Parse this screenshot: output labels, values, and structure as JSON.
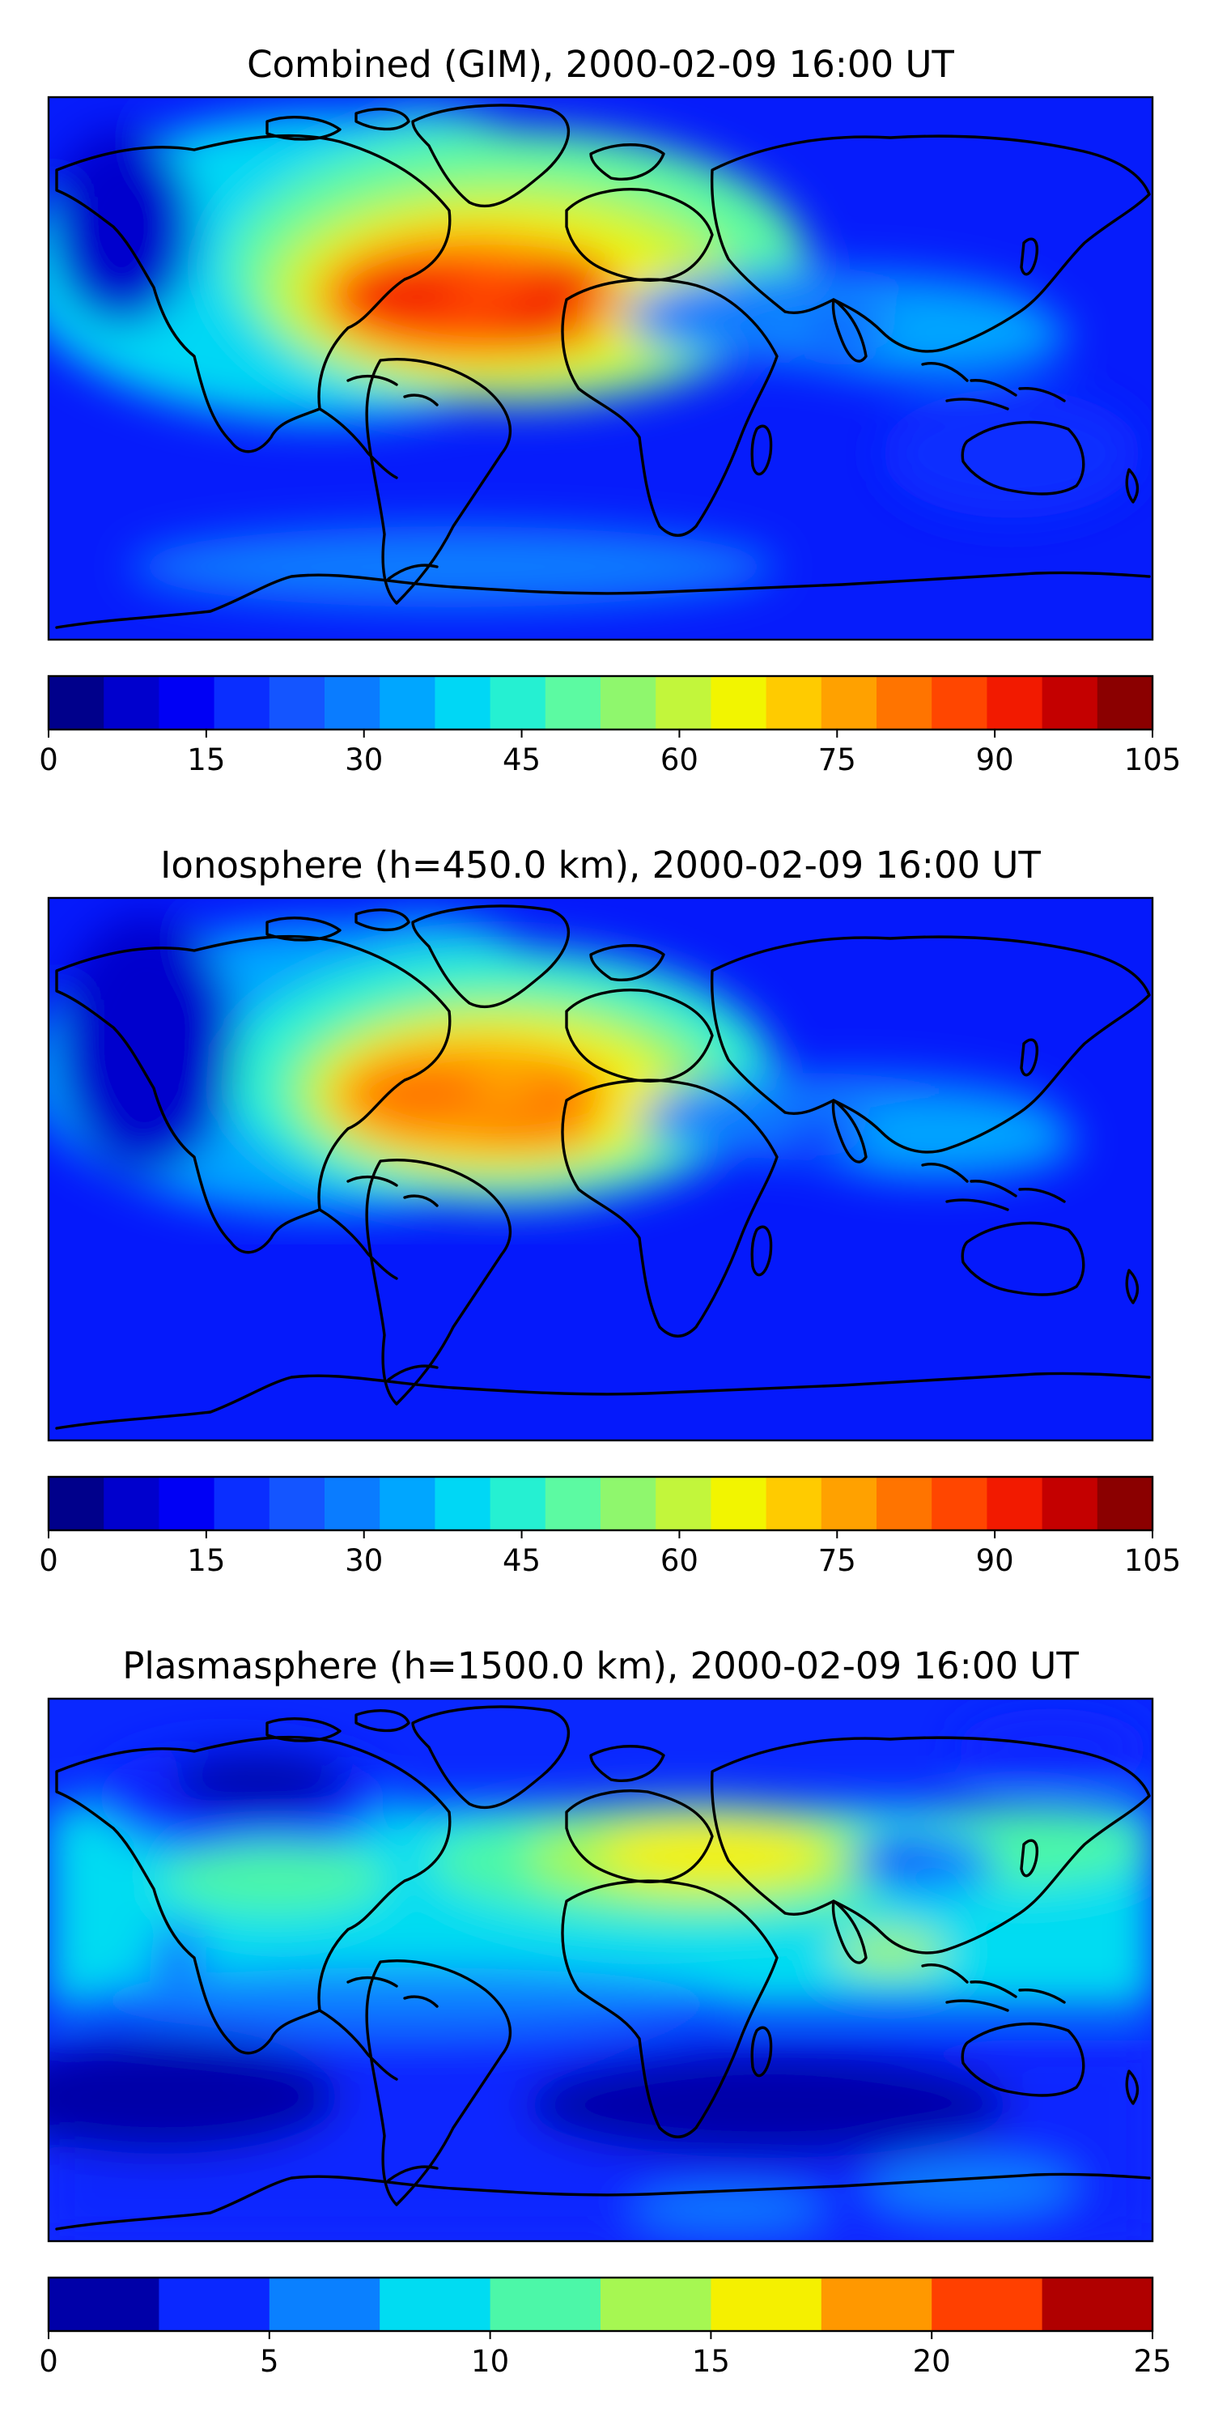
{
  "panels": [
    {
      "title": "Combined (GIM), 2000-02-09 16:00 UT",
      "colorbar": {
        "ticks": [
          "0",
          "15",
          "30",
          "45",
          "60",
          "75",
          "90",
          "105"
        ],
        "colors": [
          "#00008b",
          "#0000cd",
          "#0000f5",
          "#0a2eff",
          "#1455ff",
          "#0a7cff",
          "#00a6ff",
          "#00d7f5",
          "#25f0d2",
          "#5cfaa2",
          "#8ff76d",
          "#c2f63b",
          "#f2f500",
          "#ffcb00",
          "#ffa100",
          "#ff7400",
          "#ff4600",
          "#f21a00",
          "#c40000",
          "#8b0000"
        ]
      }
    },
    {
      "title": "Ionosphere  (h=450.0 km), 2000-02-09 16:00 UT",
      "colorbar": {
        "ticks": [
          "0",
          "15",
          "30",
          "45",
          "60",
          "75",
          "90",
          "105"
        ],
        "colors": [
          "#00008b",
          "#0000cd",
          "#0000f5",
          "#0a2eff",
          "#1455ff",
          "#0a7cff",
          "#00a6ff",
          "#00d7f5",
          "#25f0d2",
          "#5cfaa2",
          "#8ff76d",
          "#c2f63b",
          "#f2f500",
          "#ffcb00",
          "#ffa100",
          "#ff7400",
          "#ff4600",
          "#f21a00",
          "#c40000",
          "#8b0000"
        ]
      }
    },
    {
      "title": "Plasmasphere (h=1500.0 km), 2000-02-09 16:00 UT",
      "colorbar": {
        "ticks": [
          "0",
          "5",
          "10",
          "15",
          "20",
          "25"
        ],
        "colors": [
          "#0000a8",
          "#0a28ff",
          "#0a80ff",
          "#00dcf2",
          "#4cf7a8",
          "#a6f752",
          "#f5f000",
          "#ff9800",
          "#ff4000",
          "#b00000"
        ]
      }
    }
  ],
  "icons": {
    "map": "coastline-map"
  }
}
